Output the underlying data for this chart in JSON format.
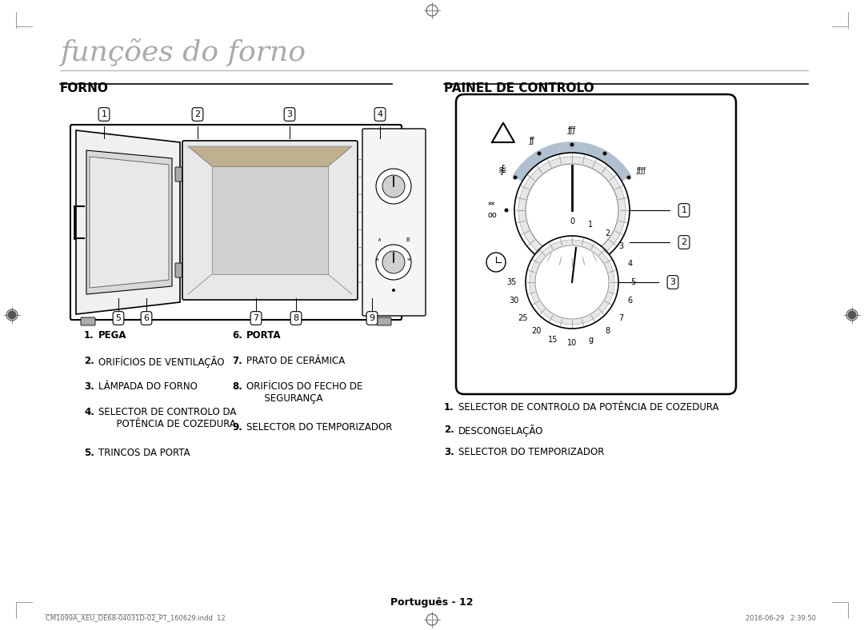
{
  "page_title": "funções do forno",
  "section_left": "FORNO",
  "section_right": "PAINEL DE CONTROLO",
  "bg_color": "#ffffff",
  "text_color": "#000000",
  "gray_color": "#888888",
  "light_gray": "#cccccc",
  "forno_labels": [
    {
      "num": "1.",
      "bold": true,
      "text": "PEGA"
    },
    {
      "num": "2.",
      "bold": false,
      "text": "ORIFÍCIOS DE VENTILAÇÃO"
    },
    {
      "num": "3.",
      "bold": false,
      "text": "LÂMPADA DO FORNO"
    },
    {
      "num": "4.",
      "bold": false,
      "text": "SELECTOR DE CONTROLO DA\n     POTÊNCIA DE COZEDURA"
    },
    {
      "num": "5.",
      "bold": false,
      "text": "TRINCOS DA PORTA"
    }
  ],
  "forno_labels_right": [
    {
      "num": "6.",
      "bold": true,
      "text": "PORTA"
    },
    {
      "num": "7.",
      "bold": false,
      "text": "PRATO DE CERÂMICA"
    },
    {
      "num": "8.",
      "bold": false,
      "text": "ORIFÍCIOS DO FECHO DE\n     SEGURANÇA"
    },
    {
      "num": "9.",
      "bold": false,
      "text": "SELECTOR DO TEMPORIZADOR"
    }
  ],
  "painel_labels": [
    {
      "num": "1.",
      "text": "SELECTOR DE CONTROLO DA POTÊNCIA DE COZEDURA"
    },
    {
      "num": "2.",
      "text": "DESCONGELAÇÃO"
    },
    {
      "num": "3.",
      "text": "SELECTOR DO TEMPORIZADOR"
    }
  ],
  "footer_left": "CM1099A_XEU_DE68-04031D-02_PT_160629.indd  12",
  "footer_right": "2016-06-29   2:39:50",
  "page_num": "Português - 12"
}
